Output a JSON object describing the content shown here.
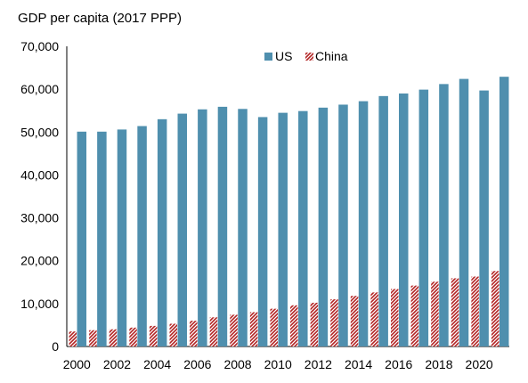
{
  "chart_data": {
    "type": "bar",
    "title": "GDP per capita (2017 PPP)",
    "xlabel": "",
    "ylabel": "",
    "ylim": [
      0,
      70000
    ],
    "yticks": [
      0,
      10000,
      20000,
      30000,
      40000,
      50000,
      60000,
      70000
    ],
    "ytick_labels": [
      "0",
      "10,000",
      "20,000",
      "30,000",
      "40,000",
      "50,000",
      "60,000",
      "70,000"
    ],
    "categories": [
      "2000",
      "2001",
      "2002",
      "2003",
      "2004",
      "2005",
      "2006",
      "2007",
      "2008",
      "2009",
      "2010",
      "2011",
      "2012",
      "2013",
      "2014",
      "2015",
      "2016",
      "2017",
      "2018",
      "2019",
      "2020",
      "2021"
    ],
    "xtick_labels_shown": [
      "2000",
      "2002",
      "2004",
      "2006",
      "2008",
      "2010",
      "2012",
      "2014",
      "2016",
      "2018",
      "2020"
    ],
    "series": [
      {
        "name": "US",
        "color": "#4f8fae",
        "pattern": "solid",
        "values": [
          50100,
          50100,
          50600,
          51400,
          53000,
          54300,
          55300,
          55900,
          55400,
          53500,
          54500,
          54900,
          55700,
          56400,
          57200,
          58400,
          59000,
          59900,
          61200,
          62400,
          59700,
          62900
        ]
      },
      {
        "name": "China",
        "color": "#b22222",
        "pattern": "hatched",
        "values": [
          3500,
          3800,
          4000,
          4400,
          4800,
          5300,
          6000,
          6800,
          7400,
          8000,
          8800,
          9600,
          10200,
          11000,
          11800,
          12600,
          13400,
          14200,
          15100,
          15900,
          16300,
          17600
        ]
      }
    ],
    "legend_position": "top-center",
    "grid": false
  }
}
